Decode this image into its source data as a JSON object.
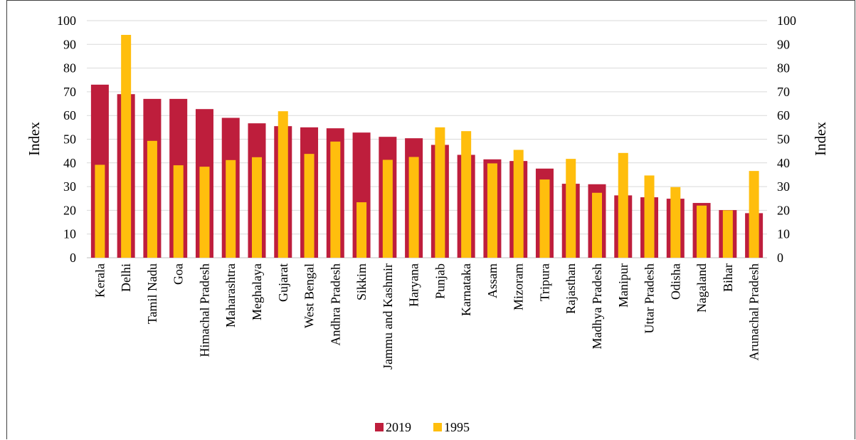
{
  "chart_data": {
    "type": "bar",
    "title": "",
    "ylabel": "Index",
    "ylabel_right": "Index",
    "ylim": [
      0,
      100
    ],
    "yticks": [
      0,
      10,
      20,
      30,
      40,
      50,
      60,
      70,
      80,
      90,
      100
    ],
    "grid": true,
    "legend_position": "bottom",
    "categories": [
      "Kerala",
      "Delhi",
      "Tamil Nadu",
      "Goa",
      "Himachal Pradesh",
      "Maharashtra",
      "Meghalaya",
      "Gujarat",
      "West Bengal",
      "Andhra Pradesh",
      "Sikkim",
      "Jammu and Kashmir",
      "Haryana",
      "Punjab",
      "Karnataka",
      "Assam",
      "Mizoram",
      "Tripura",
      "Rajasthan",
      "Madhya Pradesh",
      "Manipur",
      "Uttar Pradesh",
      "Odisha",
      "Nagaland",
      "Bihar",
      "Arunachal Pradesh"
    ],
    "series": [
      {
        "name": "2019",
        "color": "#BE1E3C",
        "values": [
          73,
          69,
          67,
          67,
          62.7,
          59,
          56.7,
          55.5,
          55,
          54.6,
          52.8,
          51,
          50.4,
          47.6,
          43.4,
          41.5,
          40.8,
          37.6,
          31.2,
          31,
          26.3,
          25.5,
          24.9,
          23.1,
          20.1,
          18.8
        ]
      },
      {
        "name": "1995",
        "color": "#FFBE0D",
        "values": [
          39.2,
          94,
          49.3,
          39,
          38.4,
          41.2,
          42.4,
          61.8,
          43.8,
          49,
          23.4,
          41.3,
          42.5,
          55,
          53.4,
          39.8,
          45.5,
          33,
          41.7,
          27.4,
          44.2,
          34.7,
          29.8,
          22,
          20,
          36.6
        ]
      }
    ]
  }
}
